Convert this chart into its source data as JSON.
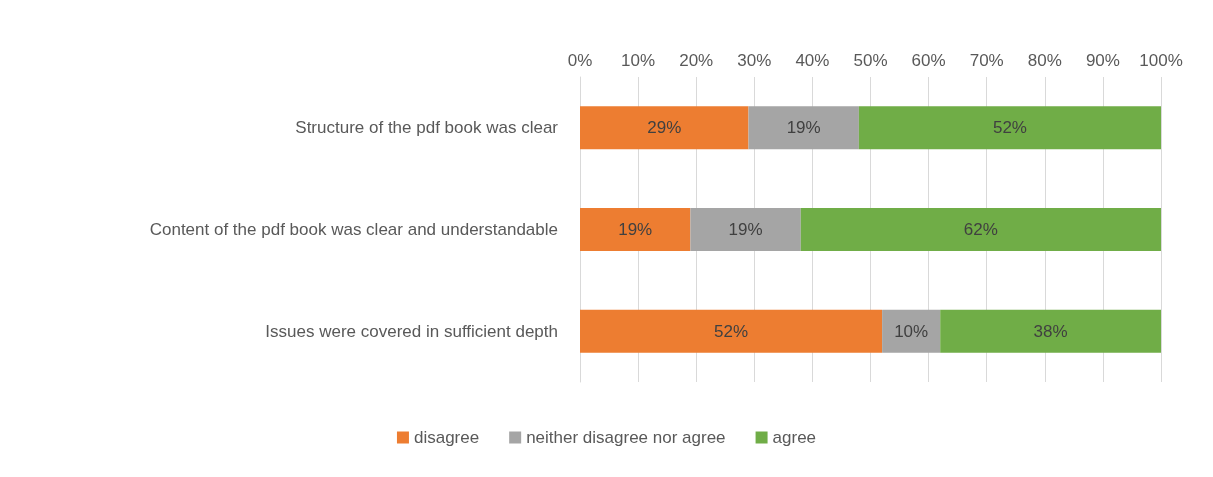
{
  "chart_data": {
    "type": "bar",
    "orientation": "horizontal",
    "stacked": true,
    "categories": [
      "Structure of the pdf book was clear",
      "Content of the pdf book was clear and understandable",
      "Issues were covered in sufficient depth"
    ],
    "series": [
      {
        "name": "disagree",
        "color": "#ed7d31",
        "values": [
          29,
          19,
          52
        ],
        "value_labels": [
          "29%",
          "19%",
          "52%"
        ]
      },
      {
        "name": "neither disagree nor agree",
        "color": "#a5a5a5",
        "values": [
          19,
          19,
          10
        ],
        "value_labels": [
          "19%",
          "19%",
          "10%"
        ]
      },
      {
        "name": "agree",
        "color": "#70ad47",
        "values": [
          52,
          62,
          38
        ],
        "value_labels": [
          "52%",
          "62%",
          "38%"
        ]
      }
    ],
    "xlim": [
      0,
      100
    ],
    "xticks": [
      {
        "value": 0,
        "label": "0%"
      },
      {
        "value": 10,
        "label": "10%"
      },
      {
        "value": 20,
        "label": "20%"
      },
      {
        "value": 30,
        "label": "30%"
      },
      {
        "value": 40,
        "label": "40%"
      },
      {
        "value": 50,
        "label": "50%"
      },
      {
        "value": 60,
        "label": "60%"
      },
      {
        "value": 70,
        "label": "70%"
      },
      {
        "value": 80,
        "label": "80%"
      },
      {
        "value": 90,
        "label": "90%"
      },
      {
        "value": 100,
        "label": "100%"
      }
    ],
    "grid": "x",
    "legend": "bottom"
  }
}
